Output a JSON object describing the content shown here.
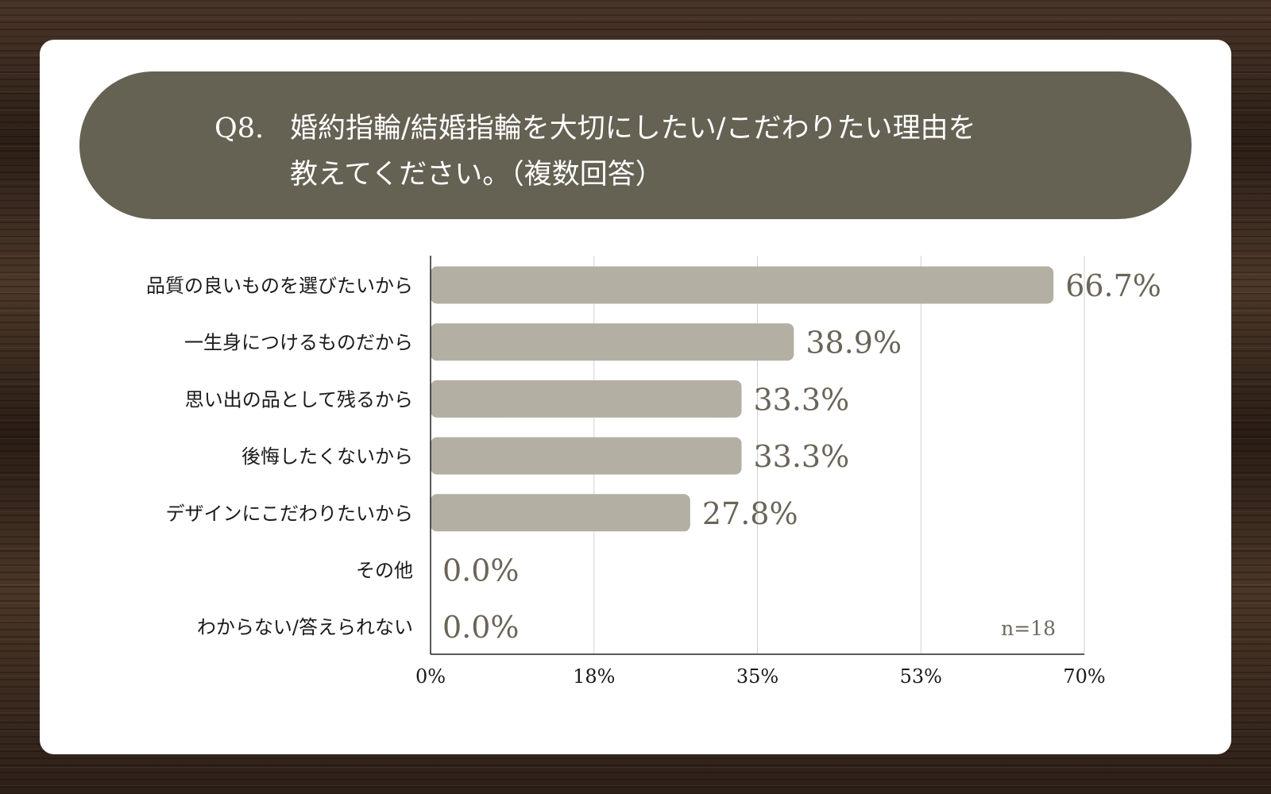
{
  "colors": {
    "title_bg": "#656153",
    "bar": "#b3afa2",
    "value_label": "#6a6558",
    "card_bg": "#ffffff"
  },
  "question": {
    "number": "Q8.",
    "line1": "婚約指輪/結婚指輪を大切にしたい/こだわりたい理由を",
    "line2": "教えてください。（複数回答）"
  },
  "chart_data": {
    "type": "bar",
    "orientation": "horizontal",
    "categories": [
      "品質の良いものを選びたいから",
      "一生身につけるものだから",
      "思い出の品として残るから",
      "後悔したくないから",
      "デザインにこだわりたいから",
      "その他",
      "わからない/答えられない"
    ],
    "values": [
      66.7,
      38.9,
      33.3,
      33.3,
      27.8,
      0.0,
      0.0
    ],
    "value_labels": [
      "66.7%",
      "38.9%",
      "33.3%",
      "33.3%",
      "27.8%",
      "0.0%",
      "0.0%"
    ],
    "xlim": [
      0,
      70
    ],
    "xticks": [
      0,
      17.5,
      35,
      52.5,
      70
    ],
    "xtick_labels": [
      "0%",
      "18%",
      "35%",
      "53%",
      "70%"
    ],
    "grid": true,
    "note": "n=18"
  }
}
